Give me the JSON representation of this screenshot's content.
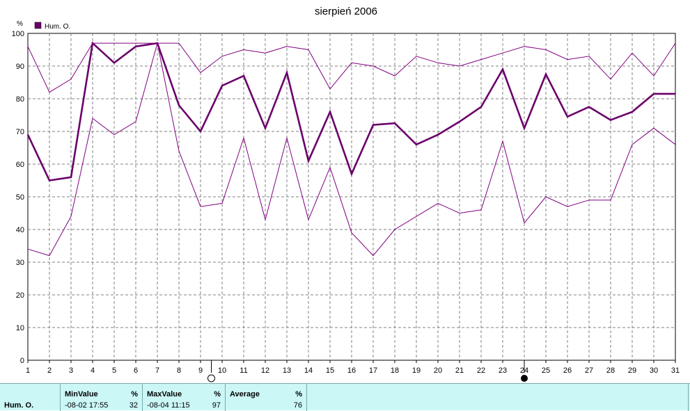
{
  "chart_data": {
    "type": "line",
    "title": "sierpień 2006",
    "ylabel": "%",
    "ylim": [
      0,
      100
    ],
    "yticks": [
      0,
      10,
      20,
      30,
      40,
      50,
      60,
      70,
      80,
      90,
      100
    ],
    "x": [
      1,
      2,
      3,
      4,
      5,
      6,
      7,
      8,
      9,
      10,
      11,
      12,
      13,
      14,
      15,
      16,
      17,
      18,
      19,
      20,
      21,
      22,
      23,
      24,
      25,
      26,
      27,
      28,
      29,
      30,
      31
    ],
    "legend": "top-left",
    "grid": true,
    "series": [
      {
        "name": "Hum. O.",
        "role": "average",
        "color": "#6a006a",
        "values": [
          69,
          55,
          56,
          97,
          91,
          96,
          97,
          78,
          70,
          84,
          87,
          71,
          88,
          61,
          76,
          57,
          72,
          72.5,
          66,
          69,
          73,
          77.5,
          89,
          71,
          87.5,
          74.5,
          77.5,
          73.5,
          76,
          81.5,
          81.5
        ]
      },
      {
        "role": "max",
        "color": "#800080",
        "values": [
          96,
          82,
          86,
          97,
          97,
          97,
          97,
          97,
          88,
          93,
          95,
          94,
          96,
          95,
          83,
          91,
          90,
          87,
          93,
          91,
          90,
          92,
          94,
          96,
          95,
          92,
          93,
          86,
          94,
          87,
          97
        ]
      },
      {
        "role": "min",
        "color": "#800080",
        "values": [
          34,
          32,
          44,
          74,
          69,
          73,
          97,
          64,
          47,
          48,
          68,
          43,
          68,
          43,
          59,
          39,
          32,
          40,
          44,
          48,
          45,
          46,
          67,
          42,
          50,
          47,
          49,
          49,
          66,
          71,
          66
        ]
      }
    ],
    "markers": [
      {
        "x": 9.5,
        "symbol": "full-moon"
      },
      {
        "x": 24,
        "symbol": "new-moon"
      }
    ]
  },
  "stats": {
    "series_label": "Hum. O.",
    "min": {
      "header": "MinValue",
      "unit": "%",
      "time": "-08-02  17:55",
      "value": "32"
    },
    "max": {
      "header": "MaxValue",
      "unit": "%",
      "time": "-08-04  11:15",
      "value": "97"
    },
    "avg": {
      "header": "Average",
      "unit": "%",
      "value": "76"
    }
  }
}
